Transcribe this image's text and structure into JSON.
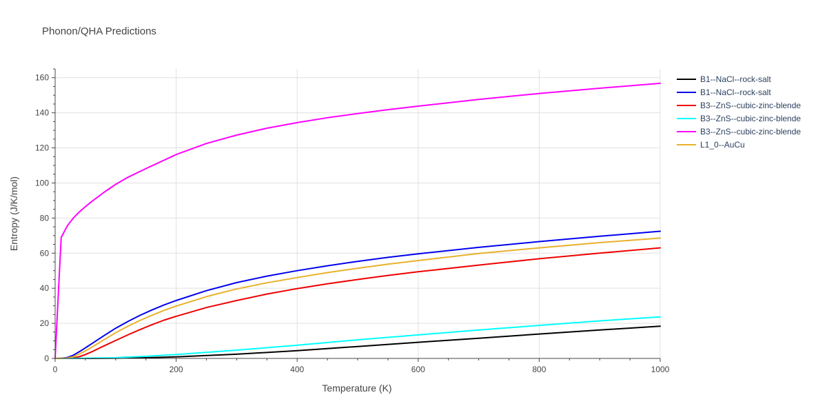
{
  "chart_data": {
    "type": "line",
    "title": "Phonon/QHA Predictions",
    "xlabel": "Temperature (K)",
    "ylabel": "Entropy (J/K/mol)",
    "xlim": [
      0,
      1000
    ],
    "ylim": [
      0,
      165
    ],
    "xticks": [
      0,
      200,
      400,
      600,
      800,
      1000
    ],
    "yticks": [
      0,
      20,
      40,
      60,
      80,
      100,
      120,
      140,
      160
    ],
    "grid": true,
    "legend_position": "right",
    "series": [
      {
        "name": "B1--NaCl--rock-salt",
        "color": "#000000",
        "x": [
          0,
          50,
          100,
          150,
          200,
          300,
          400,
          500,
          600,
          700,
          800,
          900,
          1000
        ],
        "y": [
          0,
          0,
          0.1,
          0.4,
          0.9,
          2.4,
          4.4,
          6.8,
          9.2,
          11.5,
          13.9,
          16.2,
          18.4
        ]
      },
      {
        "name": "B1--NaCl--rock-salt",
        "color": "#0000ee",
        "x": [
          0,
          10,
          20,
          30,
          40,
          50,
          60,
          80,
          100,
          120,
          140,
          160,
          180,
          200,
          250,
          300,
          350,
          400,
          450,
          500,
          550,
          600,
          700,
          800,
          900,
          1000
        ],
        "y": [
          0,
          0.1,
          0.5,
          1.8,
          3.8,
          6.0,
          8.3,
          12.8,
          17.2,
          21.0,
          24.5,
          27.6,
          30.5,
          33.0,
          38.6,
          43.2,
          46.9,
          50.0,
          52.8,
          55.3,
          57.6,
          59.6,
          63.3,
          66.6,
          69.6,
          72.5
        ]
      },
      {
        "name": "B3--ZnS--cubic-zinc-blende",
        "color": "#ee0000",
        "x": [
          0,
          20,
          30,
          40,
          50,
          60,
          80,
          100,
          120,
          140,
          160,
          180,
          200,
          250,
          300,
          350,
          400,
          450,
          500,
          550,
          600,
          700,
          800,
          900,
          1000
        ],
        "y": [
          0,
          0,
          0.3,
          1.0,
          2.2,
          3.7,
          7.0,
          10.2,
          13.4,
          16.4,
          19.2,
          21.8,
          24.0,
          29.0,
          33.0,
          36.7,
          39.8,
          42.5,
          45.0,
          47.3,
          49.4,
          53.2,
          56.8,
          60.0,
          63.0
        ]
      },
      {
        "name": "B3--ZnS--cubic-zinc-blende",
        "color": "#00ffff",
        "x": [
          0,
          50,
          100,
          150,
          200,
          300,
          400,
          500,
          600,
          700,
          800,
          900,
          1000
        ],
        "y": [
          0,
          0.1,
          0.4,
          1.2,
          2.2,
          4.7,
          7.5,
          10.6,
          13.4,
          16.2,
          18.8,
          21.4,
          23.7
        ]
      },
      {
        "name": "B3--ZnS--cubic-zinc-blende",
        "color": "#ff00ff",
        "x": [
          0,
          5,
          10,
          20,
          30,
          40,
          50,
          60,
          80,
          100,
          120,
          150,
          200,
          250,
          300,
          350,
          400,
          450,
          500,
          550,
          600,
          700,
          800,
          900,
          1000
        ],
        "y": [
          0,
          35,
          69,
          75.5,
          80,
          83.5,
          86.5,
          89.3,
          94.5,
          99.2,
          103.2,
          108.2,
          116.2,
          122.5,
          127.3,
          131.2,
          134.4,
          137.2,
          139.6,
          141.8,
          143.8,
          147.6,
          151.0,
          154.0,
          156.8
        ]
      },
      {
        "name": "L1_0--AuCu",
        "color": "#e8b12a",
        "x": [
          0,
          20,
          30,
          40,
          50,
          60,
          80,
          100,
          120,
          140,
          160,
          180,
          200,
          250,
          300,
          350,
          400,
          450,
          500,
          550,
          600,
          700,
          800,
          900,
          1000
        ],
        "y": [
          0,
          0.2,
          1.0,
          2.5,
          4.3,
          6.3,
          10.5,
          14.6,
          18.3,
          21.6,
          24.6,
          27.4,
          29.8,
          35.2,
          39.6,
          43.1,
          46.1,
          48.9,
          51.4,
          53.7,
          55.8,
          59.8,
          63.0,
          66.0,
          68.6
        ]
      }
    ]
  }
}
